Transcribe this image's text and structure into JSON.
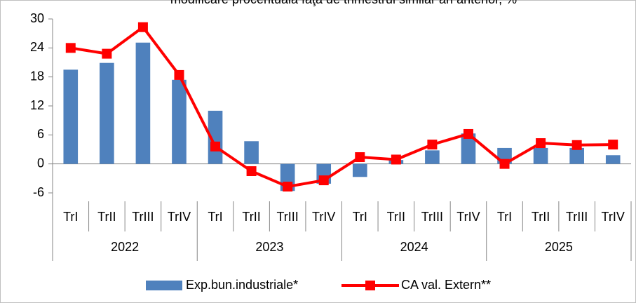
{
  "chart_data": {
    "type": "bar_line",
    "title": "modificare procentuală faţă de trimestrul similar an anterior, %",
    "categories": [
      "TrI",
      "TrII",
      "TrIII",
      "TrIV",
      "TrI",
      "TrII",
      "TrIII",
      "TrIV",
      "TrI",
      "TrII",
      "TrIII",
      "TrIV",
      "TrI",
      "TrII",
      "TrIII",
      "TrIV"
    ],
    "years": [
      "2022",
      "2023",
      "2024",
      "2025"
    ],
    "series": [
      {
        "name": "Exp.bun.industriale*",
        "type": "bar",
        "color": "#4f81bd",
        "values": [
          19.5,
          20.9,
          25.1,
          17.4,
          11.0,
          4.7,
          -5.6,
          -4.1,
          -2.7,
          0.8,
          2.8,
          6.3,
          3.3,
          3.3,
          3.3,
          1.8
        ]
      },
      {
        "name": "CA val. Extern**",
        "type": "line",
        "color": "#ff0000",
        "values": [
          24.0,
          22.8,
          28.3,
          18.4,
          3.6,
          -1.5,
          -4.7,
          -3.4,
          1.4,
          0.9,
          4.0,
          6.2,
          0.0,
          4.3,
          3.9,
          4.0
        ]
      }
    ],
    "ylim": [
      -6,
      30
    ],
    "yticks": [
      -6,
      0,
      6,
      12,
      18,
      24,
      30
    ],
    "grid": false,
    "legend": "bottom"
  }
}
